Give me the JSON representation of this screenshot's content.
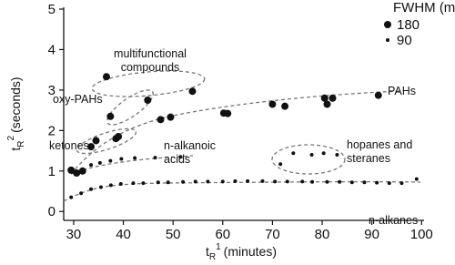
{
  "chart_data": {
    "type": "scatter",
    "xlabel": {
      "base": "t",
      "sub": "R",
      "sup": "1",
      "unit": "(minutes)"
    },
    "ylabel": {
      "base": "t",
      "sub": "R",
      "sup": "2",
      "unit": "(seconds)"
    },
    "xlim": [
      28,
      100.5
    ],
    "ylim": [
      -0.22,
      5
    ],
    "xticks": [
      30,
      40,
      50,
      60,
      70,
      80,
      90,
      100
    ],
    "yticks": [
      0,
      1,
      2,
      3,
      4,
      5
    ],
    "color": "#111111",
    "size_legend": {
      "title": "FWHM (ms)",
      "values": [
        180,
        90
      ]
    },
    "annotations": [
      [
        "multifunctional",
        "compounds"
      ],
      [
        "oxy-PAHs"
      ],
      [
        "PAHs"
      ],
      [
        "ketones"
      ],
      [
        "n-alkanoic",
        "acids"
      ],
      [
        "hopanes and",
        "steranes"
      ],
      [
        "n-alkanes"
      ]
    ],
    "series": [
      {
        "x": [
          29.5,
          31.5,
          33.5,
          35.5,
          37.5,
          39.5,
          42,
          44,
          47,
          49,
          52,
          54.5,
          57,
          60,
          62.5,
          65,
          68,
          70.5,
          73,
          76,
          78,
          81,
          83.5,
          86,
          88.5,
          91,
          93.5,
          96,
          99,
          29.5,
          30.6,
          31.8,
          33.5,
          35.3,
          37.4,
          39.6,
          42.3,
          46.4,
          51.5,
          33.5,
          34.5,
          38.5,
          39,
          47.5,
          49.5,
          60.2,
          61,
          70,
          72.5,
          80.5,
          81,
          82.1,
          91.3,
          37.4,
          44.9,
          36.6,
          53.9,
          71.6,
          74.2,
          77.9,
          80.3,
          83
        ],
        "y": [
          0.35,
          0.45,
          0.55,
          0.6,
          0.65,
          0.68,
          0.7,
          0.7,
          0.72,
          0.72,
          0.73,
          0.74,
          0.74,
          0.74,
          0.75,
          0.75,
          0.75,
          0.74,
          0.74,
          0.74,
          0.73,
          0.73,
          0.73,
          0.72,
          0.72,
          0.71,
          0.7,
          0.7,
          0.8,
          1.02,
          0.95,
          1.0,
          1.15,
          1.2,
          1.25,
          1.3,
          1.32,
          1.33,
          1.35,
          1.6,
          1.75,
          1.8,
          1.85,
          2.27,
          2.33,
          2.43,
          2.42,
          2.65,
          2.6,
          2.8,
          2.65,
          2.8,
          2.87,
          2.35,
          2.75,
          3.33,
          2.97,
          1.17,
          1.44,
          1.4,
          1.44,
          1.4
        ],
        "sizes": [
          90,
          90,
          90,
          90,
          90,
          90,
          90,
          90,
          90,
          90,
          90,
          90,
          90,
          90,
          90,
          90,
          90,
          90,
          90,
          90,
          90,
          90,
          90,
          90,
          90,
          90,
          90,
          90,
          90,
          180,
          180,
          180,
          90,
          90,
          90,
          90,
          90,
          90,
          90,
          180,
          180,
          180,
          180,
          180,
          180,
          180,
          180,
          180,
          180,
          180,
          180,
          180,
          180,
          180,
          180,
          180,
          180,
          90,
          90,
          90,
          90,
          90
        ]
      }
    ]
  }
}
